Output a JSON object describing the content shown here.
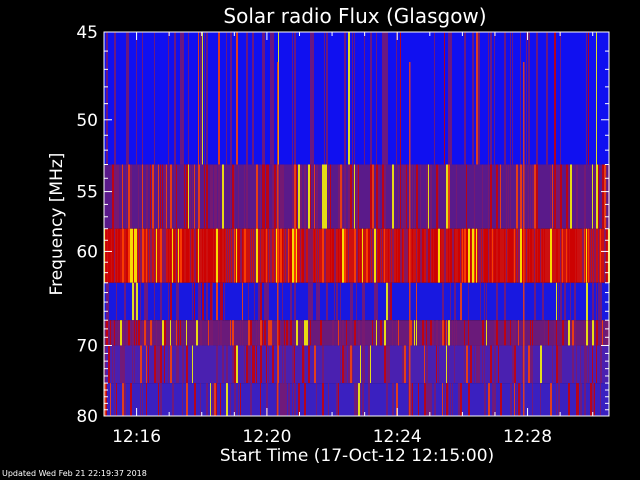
{
  "chart_data": {
    "type": "heatmap",
    "title": "Solar radio Flux (Glasgow)",
    "xlabel": "Start Time (17-Oct-12 12:15:00)",
    "ylabel": "Frequency [MHz]",
    "x_range_minutes": [
      "12:15:00",
      "12:30:30"
    ],
    "x_ticks": [
      "12:16",
      "12:20",
      "12:24",
      "12:28"
    ],
    "y_range_mhz": [
      45,
      80
    ],
    "y_ticks": [
      45,
      50,
      55,
      60,
      70,
      80
    ],
    "y_scale": "reciprocal",
    "colormap": [
      "#0000ff",
      "#7a1a6e",
      "#cc0000",
      "#ff4400",
      "#ffff00"
    ],
    "bands": [
      {
        "from_mhz": 45,
        "to_mhz": 53,
        "level": "low",
        "dominant_color": "#1010f0"
      },
      {
        "from_mhz": 53,
        "to_mhz": 58,
        "level": "medium",
        "dominant_color": "#5a1a8a"
      },
      {
        "from_mhz": 58,
        "to_mhz": 63,
        "level": "high",
        "dominant_color": "#cc1010"
      },
      {
        "from_mhz": 63,
        "to_mhz": 67,
        "level": "low",
        "dominant_color": "#1818e0"
      },
      {
        "from_mhz": 67,
        "to_mhz": 70,
        "level": "medium",
        "dominant_color": "#6a1a7a"
      },
      {
        "from_mhz": 70,
        "to_mhz": 75,
        "level": "low-medium",
        "dominant_color": "#4a20b0"
      },
      {
        "from_mhz": 75,
        "to_mhz": 80,
        "level": "low-medium",
        "dominant_color": "#3a20c0"
      }
    ]
  },
  "footer": {
    "updated": "Updated Wed Feb 21 22:19:37 2018"
  }
}
